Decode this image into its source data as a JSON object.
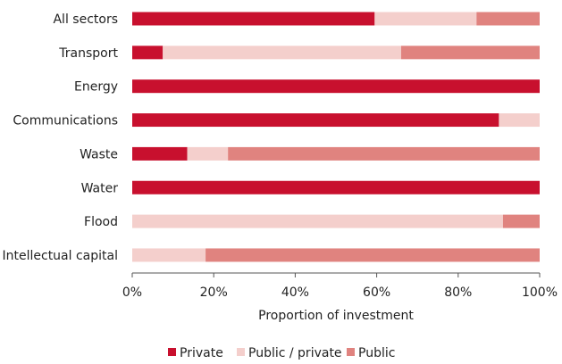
{
  "chart_data": {
    "type": "bar",
    "orientation": "horizontal",
    "stacked": true,
    "categories": [
      "All sectors",
      "Transport",
      "Energy",
      "Communications",
      "Waste",
      "Water",
      "Flood",
      "Intellectual capital"
    ],
    "series": [
      {
        "name": "Private",
        "color": "#c8102e",
        "values": [
          59.5,
          7.5,
          100,
          90,
          13.5,
          100,
          0,
          0
        ]
      },
      {
        "name": "Public / private",
        "color": "#f4cfcc",
        "values": [
          25,
          58.5,
          0,
          10,
          10,
          0,
          91,
          18
        ]
      },
      {
        "name": "Public",
        "color": "#e0837f",
        "values": [
          15.5,
          34,
          0,
          0,
          76.5,
          0,
          9,
          82
        ]
      }
    ],
    "xlabel": "Proportion of investment",
    "ylabel": "",
    "xlim": [
      0,
      100
    ],
    "xticks": [
      "0%",
      "20%",
      "40%",
      "60%",
      "80%",
      "100%"
    ],
    "legend_position": "bottom",
    "grid": false
  }
}
